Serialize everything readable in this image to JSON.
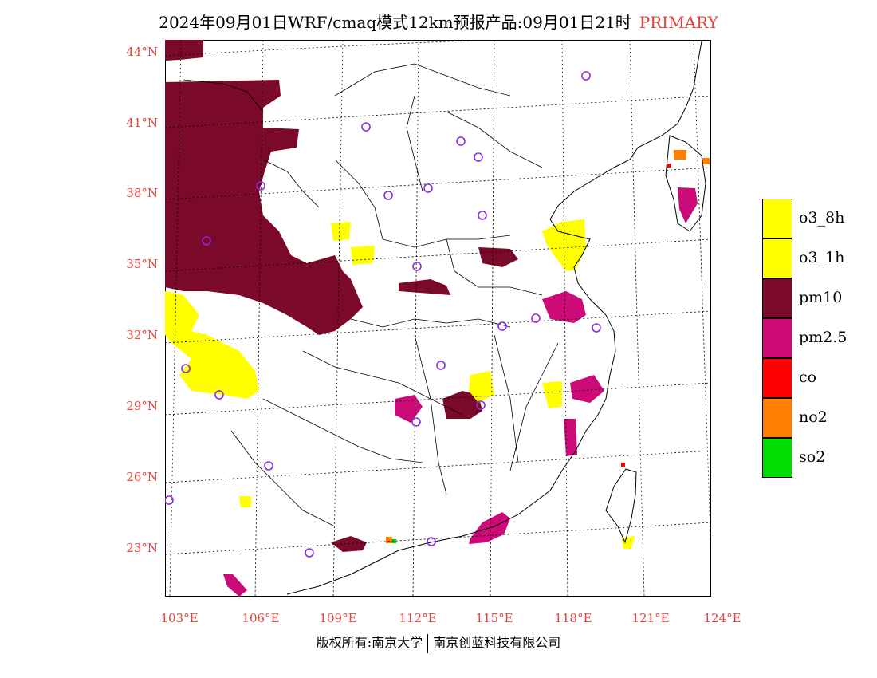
{
  "header": {
    "title": "2024年09月01日WRF/cmaq模式12km预报产品:09月01日21时",
    "tag": "PRIMARY"
  },
  "axes": {
    "lat_labels": [
      "44°N",
      "41°N",
      "38°N",
      "35°N",
      "32°N",
      "29°N",
      "26°N",
      "23°N"
    ],
    "lon_labels": [
      "103°E",
      "106°E",
      "109°E",
      "112°E",
      "115°E",
      "118°E",
      "121°E",
      "124°E"
    ]
  },
  "legend": {
    "items": [
      {
        "label": "o3_8h",
        "color": "#ffff00"
      },
      {
        "label": "o3_1h",
        "color": "#ffff00"
      },
      {
        "label": "pm10",
        "color": "#7b0a2a"
      },
      {
        "label": "pm2.5",
        "color": "#cc0a78"
      },
      {
        "label": "co",
        "color": "#ff0000"
      },
      {
        "label": "no2",
        "color": "#ff7f00"
      },
      {
        "label": "so2",
        "color": "#00dd00"
      }
    ]
  },
  "footer": {
    "left": "版权所有:南京大学",
    "right": "南京创蓝科技有限公司"
  },
  "colors": {
    "o3": "#ffff00",
    "pm10": "#7b0a2a",
    "pm25": "#cc0a78",
    "co": "#ff0000",
    "no2": "#ff7f00",
    "so2": "#00dd00",
    "label": "#e8413c",
    "city_marker": "#8a2be2"
  }
}
